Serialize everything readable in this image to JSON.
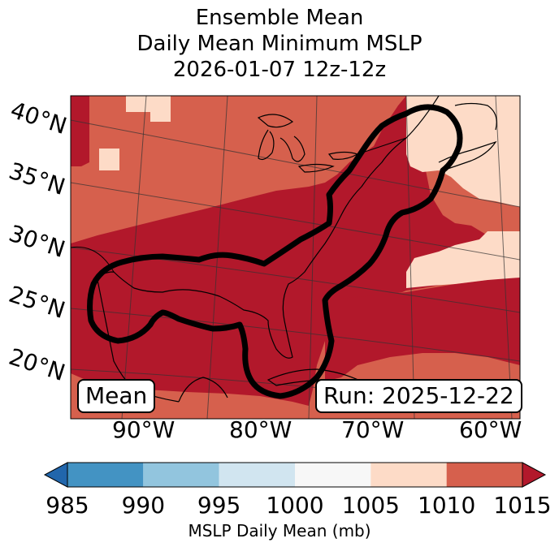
{
  "title": {
    "line1": "Ensemble Mean",
    "line2": "Daily Mean Minimum MSLP",
    "line3": "2026-01-07 12z-12z"
  },
  "latitude_labels": [
    "40°N",
    "35°N",
    "30°N",
    "25°N",
    "20°N"
  ],
  "longitude_labels": [
    "90°W",
    "80°W",
    "70°W",
    "60°W"
  ],
  "annotations": {
    "mean": "Mean",
    "run": "Run: 2025-12-22"
  },
  "colorbar": {
    "ticks": [
      "985",
      "990",
      "995",
      "1000",
      "1005",
      "1010",
      "1015"
    ],
    "label": "MSLP Daily Mean (mb)",
    "colors": [
      "#2166ac",
      "#4393c3",
      "#92c5de",
      "#d1e5f0",
      "#f7f7f7",
      "#fddbc7",
      "#d6604d",
      "#b2182b"
    ]
  },
  "map_colors": {
    "bin_1005_1010": "#fddbc7",
    "bin_1010_1015": "#d6604d",
    "bin_above_1015": "#b2182b",
    "contour": "#000000"
  }
}
